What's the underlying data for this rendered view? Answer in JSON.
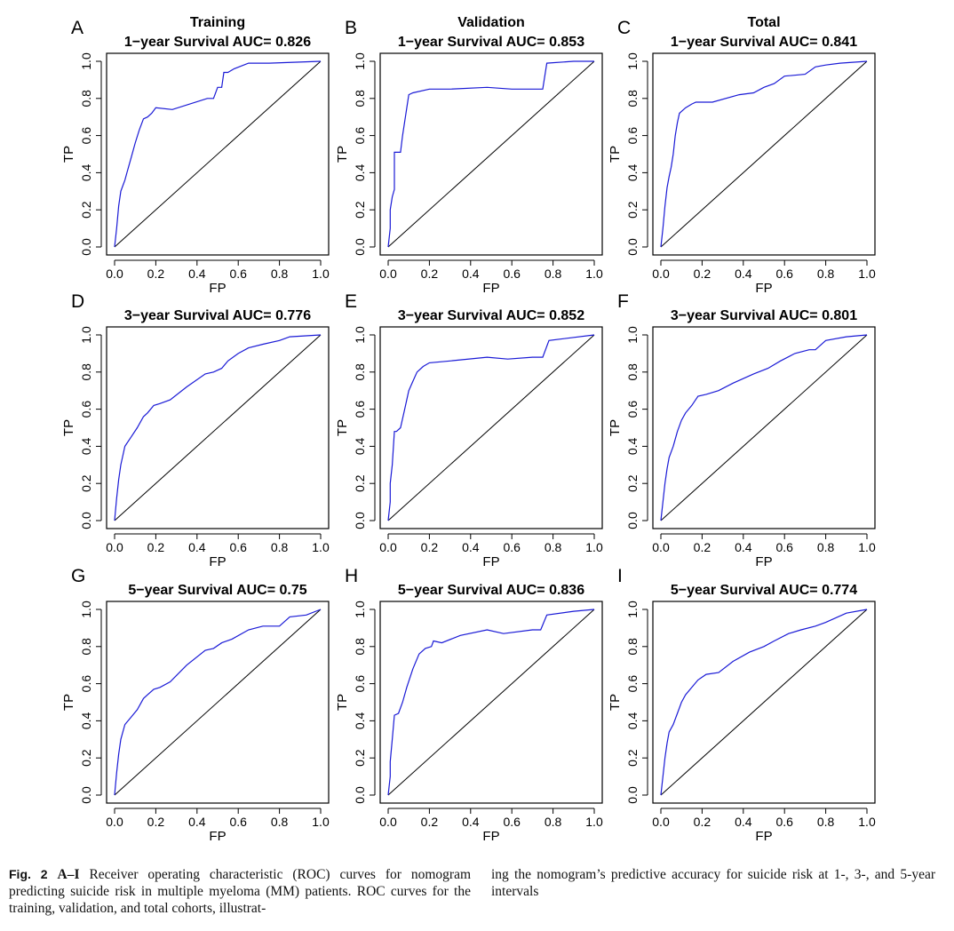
{
  "caption": {
    "fig_label": "Fig. 2",
    "panel_range": "A–I",
    "left_text": "Receiver operating characteristic (ROC) curves for nomogram predicting suicide risk in multiple myeloma (MM) patients. ROC curves for the training, validation, and total cohorts, illustrat-",
    "right_text": "ing the nomogram’s predictive accuracy for suicide risk at 1-, 3-, and 5-year intervals"
  },
  "colors": {
    "roc_line": "#1a1ad6",
    "diagonal": "#000000",
    "axes": "#000000"
  },
  "chart_data": [
    {
      "type": "line",
      "panel": "A",
      "column_title": "Training",
      "title": "1−year Survival AUC= 0.826",
      "xlabel": "FP",
      "ylabel": "TP",
      "xlim": [
        0,
        1
      ],
      "ylim": [
        0,
        1
      ],
      "xticks": [
        "0.0",
        "0.2",
        "0.4",
        "0.6",
        "0.8",
        "1.0"
      ],
      "yticks": [
        "0.0",
        "0.2",
        "0.4",
        "0.6",
        "0.8",
        "1.0"
      ],
      "x": [
        0,
        0.01,
        0.02,
        0.03,
        0.04,
        0.05,
        0.06,
        0.08,
        0.1,
        0.12,
        0.14,
        0.16,
        0.18,
        0.2,
        0.28,
        0.45,
        0.48,
        0.5,
        0.52,
        0.53,
        0.55,
        0.58,
        0.65,
        0.75,
        1.0
      ],
      "y": [
        0,
        0.1,
        0.22,
        0.3,
        0.33,
        0.36,
        0.4,
        0.48,
        0.56,
        0.63,
        0.69,
        0.7,
        0.72,
        0.75,
        0.74,
        0.8,
        0.8,
        0.86,
        0.86,
        0.94,
        0.94,
        0.96,
        0.99,
        0.99,
        1.0
      ],
      "diagonal": true
    },
    {
      "type": "line",
      "panel": "B",
      "column_title": "Validation",
      "title": "1−year Survival AUC= 0.853",
      "xlabel": "FP",
      "ylabel": "TP",
      "xlim": [
        0,
        1
      ],
      "ylim": [
        0,
        1
      ],
      "xticks": [
        "0.0",
        "0.2",
        "0.4",
        "0.6",
        "0.8",
        "1.0"
      ],
      "yticks": [
        "0.0",
        "0.2",
        "0.4",
        "0.6",
        "0.8",
        "1.0"
      ],
      "x": [
        0,
        0.01,
        0.01,
        0.02,
        0.03,
        0.03,
        0.06,
        0.07,
        0.1,
        0.12,
        0.2,
        0.3,
        0.48,
        0.6,
        0.75,
        0.77,
        0.9,
        1.0
      ],
      "y": [
        0,
        0.1,
        0.2,
        0.27,
        0.31,
        0.51,
        0.51,
        0.6,
        0.82,
        0.83,
        0.85,
        0.85,
        0.86,
        0.85,
        0.85,
        0.99,
        1.0,
        1.0
      ],
      "diagonal": true
    },
    {
      "type": "line",
      "panel": "C",
      "column_title": "Total",
      "title": "1−year Survival AUC= 0.841",
      "xlabel": "FP",
      "ylabel": "TP",
      "xlim": [
        0,
        1
      ],
      "ylim": [
        0,
        1
      ],
      "xticks": [
        "0.0",
        "0.2",
        "0.4",
        "0.6",
        "0.8",
        "1.0"
      ],
      "yticks": [
        "0.0",
        "0.2",
        "0.4",
        "0.6",
        "0.8",
        "1.0"
      ],
      "x": [
        0,
        0.01,
        0.02,
        0.03,
        0.04,
        0.05,
        0.06,
        0.07,
        0.08,
        0.09,
        0.1,
        0.12,
        0.15,
        0.17,
        0.25,
        0.38,
        0.45,
        0.5,
        0.55,
        0.6,
        0.7,
        0.75,
        0.8,
        0.87,
        1.0
      ],
      "y": [
        0,
        0.1,
        0.22,
        0.32,
        0.38,
        0.43,
        0.5,
        0.6,
        0.67,
        0.72,
        0.73,
        0.75,
        0.77,
        0.78,
        0.78,
        0.82,
        0.83,
        0.86,
        0.88,
        0.92,
        0.93,
        0.97,
        0.98,
        0.99,
        1.0
      ],
      "diagonal": true
    },
    {
      "type": "line",
      "panel": "D",
      "title": "3−year Survival AUC= 0.776",
      "xlabel": "FP",
      "ylabel": "TP",
      "xlim": [
        0,
        1
      ],
      "ylim": [
        0,
        1
      ],
      "xticks": [
        "0.0",
        "0.2",
        "0.4",
        "0.6",
        "0.8",
        "1.0"
      ],
      "yticks": [
        "0.0",
        "0.2",
        "0.4",
        "0.6",
        "0.8",
        "1.0"
      ],
      "x": [
        0,
        0.01,
        0.02,
        0.03,
        0.05,
        0.08,
        0.11,
        0.14,
        0.16,
        0.19,
        0.22,
        0.27,
        0.35,
        0.44,
        0.48,
        0.52,
        0.55,
        0.6,
        0.65,
        0.72,
        0.8,
        0.85,
        1.0
      ],
      "y": [
        0,
        0.12,
        0.22,
        0.3,
        0.4,
        0.45,
        0.5,
        0.56,
        0.58,
        0.62,
        0.63,
        0.65,
        0.72,
        0.79,
        0.8,
        0.82,
        0.86,
        0.9,
        0.93,
        0.95,
        0.97,
        0.99,
        1.0
      ],
      "diagonal": true
    },
    {
      "type": "line",
      "panel": "E",
      "title": "3−year Survival AUC= 0.852",
      "xlabel": "FP",
      "ylabel": "TP",
      "xlim": [
        0,
        1
      ],
      "ylim": [
        0,
        1
      ],
      "xticks": [
        "0.0",
        "0.2",
        "0.4",
        "0.6",
        "0.8",
        "1.0"
      ],
      "yticks": [
        "0.0",
        "0.2",
        "0.4",
        "0.6",
        "0.8",
        "1.0"
      ],
      "x": [
        0,
        0.01,
        0.01,
        0.02,
        0.03,
        0.04,
        0.06,
        0.08,
        0.1,
        0.12,
        0.14,
        0.17,
        0.2,
        0.3,
        0.48,
        0.58,
        0.7,
        0.75,
        0.78,
        1.0
      ],
      "y": [
        0,
        0.1,
        0.2,
        0.3,
        0.48,
        0.48,
        0.5,
        0.6,
        0.7,
        0.75,
        0.8,
        0.83,
        0.85,
        0.86,
        0.88,
        0.87,
        0.88,
        0.88,
        0.97,
        1.0
      ],
      "diagonal": true
    },
    {
      "type": "line",
      "panel": "F",
      "title": "3−year Survival AUC= 0.801",
      "xlabel": "FP",
      "ylabel": "TP",
      "xlim": [
        0,
        1
      ],
      "ylim": [
        0,
        1
      ],
      "xticks": [
        "0.0",
        "0.2",
        "0.4",
        "0.6",
        "0.8",
        "1.0"
      ],
      "yticks": [
        "0.0",
        "0.2",
        "0.4",
        "0.6",
        "0.8",
        "1.0"
      ],
      "x": [
        0,
        0.01,
        0.02,
        0.03,
        0.04,
        0.06,
        0.08,
        0.1,
        0.12,
        0.15,
        0.18,
        0.22,
        0.28,
        0.35,
        0.45,
        0.52,
        0.58,
        0.65,
        0.72,
        0.75,
        0.8,
        0.9,
        1.0
      ],
      "y": [
        0,
        0.1,
        0.2,
        0.28,
        0.34,
        0.4,
        0.48,
        0.54,
        0.58,
        0.62,
        0.67,
        0.68,
        0.7,
        0.74,
        0.79,
        0.82,
        0.86,
        0.9,
        0.92,
        0.92,
        0.97,
        0.99,
        1.0
      ],
      "diagonal": true
    },
    {
      "type": "line",
      "panel": "G",
      "title": "5−year Survival AUC= 0.75",
      "xlabel": "FP",
      "ylabel": "TP",
      "xlim": [
        0,
        1
      ],
      "ylim": [
        0,
        1
      ],
      "xticks": [
        "0.0",
        "0.2",
        "0.4",
        "0.6",
        "0.8",
        "1.0"
      ],
      "yticks": [
        "0.0",
        "0.2",
        "0.4",
        "0.6",
        "0.8",
        "1.0"
      ],
      "x": [
        0,
        0.01,
        0.02,
        0.03,
        0.05,
        0.08,
        0.11,
        0.14,
        0.16,
        0.19,
        0.22,
        0.27,
        0.35,
        0.44,
        0.48,
        0.52,
        0.57,
        0.65,
        0.72,
        0.8,
        0.85,
        0.93,
        1.0
      ],
      "y": [
        0,
        0.12,
        0.22,
        0.3,
        0.38,
        0.42,
        0.46,
        0.52,
        0.54,
        0.57,
        0.58,
        0.61,
        0.7,
        0.78,
        0.79,
        0.82,
        0.84,
        0.89,
        0.91,
        0.91,
        0.96,
        0.97,
        1.0
      ],
      "diagonal": true
    },
    {
      "type": "line",
      "panel": "H",
      "title": "5−year Survival AUC= 0.836",
      "xlabel": "FP",
      "ylabel": "TP",
      "xlim": [
        0,
        1
      ],
      "ylim": [
        0,
        1
      ],
      "xticks": [
        "0.0",
        "0.2",
        "0.4",
        "0.6",
        "0.8",
        "1.0"
      ],
      "yticks": [
        "0.0",
        "0.2",
        "0.4",
        "0.6",
        "0.8",
        "1.0"
      ],
      "x": [
        0,
        0.01,
        0.01,
        0.02,
        0.03,
        0.05,
        0.07,
        0.09,
        0.12,
        0.15,
        0.18,
        0.21,
        0.22,
        0.26,
        0.35,
        0.48,
        0.56,
        0.7,
        0.74,
        0.77,
        0.9,
        1.0
      ],
      "y": [
        0,
        0.1,
        0.18,
        0.3,
        0.43,
        0.44,
        0.5,
        0.58,
        0.68,
        0.76,
        0.79,
        0.8,
        0.83,
        0.82,
        0.86,
        0.89,
        0.87,
        0.89,
        0.89,
        0.97,
        0.99,
        1.0
      ],
      "diagonal": true
    },
    {
      "type": "line",
      "panel": "I",
      "title": "5−year Survival AUC= 0.774",
      "xlabel": "FP",
      "ylabel": "TP",
      "xlim": [
        0,
        1
      ],
      "ylim": [
        0,
        1
      ],
      "xticks": [
        "0.0",
        "0.2",
        "0.4",
        "0.6",
        "0.8",
        "1.0"
      ],
      "yticks": [
        "0.0",
        "0.2",
        "0.4",
        "0.6",
        "0.8",
        "1.0"
      ],
      "x": [
        0,
        0.01,
        0.02,
        0.03,
        0.04,
        0.06,
        0.08,
        0.1,
        0.12,
        0.15,
        0.18,
        0.22,
        0.28,
        0.35,
        0.43,
        0.5,
        0.55,
        0.62,
        0.68,
        0.75,
        0.8,
        0.9,
        1.0
      ],
      "y": [
        0,
        0.1,
        0.2,
        0.28,
        0.34,
        0.38,
        0.44,
        0.5,
        0.54,
        0.58,
        0.62,
        0.65,
        0.66,
        0.72,
        0.77,
        0.8,
        0.83,
        0.87,
        0.89,
        0.91,
        0.93,
        0.98,
        1.0
      ],
      "diagonal": true
    }
  ]
}
